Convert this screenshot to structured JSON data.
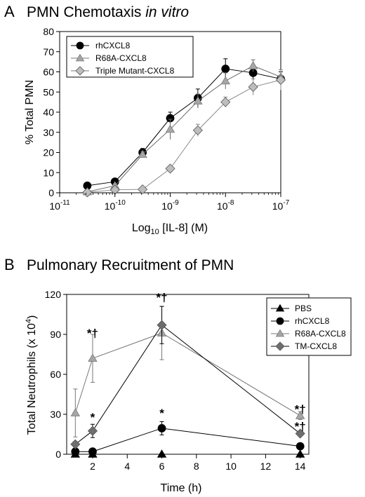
{
  "colors": {
    "rhCXCL8": "#000000",
    "R68A": "#a6a6a6",
    "TM_A": "#bdbdbd",
    "TM_B": "#6e6e6e",
    "PBS": "#000000",
    "line": "#404040"
  },
  "chart_data": [
    {
      "type": "line",
      "panel_label": "A",
      "title": "PMN Chemotaxis",
      "title_italic": "in vitro",
      "xlabel_pre": "Log",
      "xlabel_sub": "10",
      "xlabel_post": " [IL-8] (M)",
      "ylabel": "% Total PMN",
      "x_scale": "log",
      "xlim_exp": [
        -11,
        -7
      ],
      "ylim": [
        0,
        80
      ],
      "y_ticks": [
        0,
        10,
        20,
        30,
        40,
        50,
        60,
        70,
        80
      ],
      "x_tick_labels": [
        {
          "exp": -11,
          "base": "10",
          "sup": "-11"
        },
        {
          "exp": -10,
          "base": "10",
          "sup": "-10"
        },
        {
          "exp": -9,
          "base": "10",
          "sup": "-9"
        },
        {
          "exp": -8,
          "base": "10",
          "sup": "-8"
        },
        {
          "exp": -7,
          "base": "10",
          "sup": "-7"
        }
      ],
      "legend_position": "top-left",
      "series": [
        {
          "name": "rhCXCL8",
          "marker": "circle",
          "color_key": "rhCXCL8",
          "log10_x": [
            -10.5,
            -10.0,
            -9.5,
            -9.0,
            -8.5,
            -8.0,
            -7.5,
            -7.0
          ],
          "y": [
            3.5,
            5.5,
            20.0,
            37.0,
            47.0,
            61.5,
            59.5,
            56.5
          ],
          "err": [
            1.0,
            1.0,
            2.0,
            3.0,
            4.5,
            5.0,
            3.5,
            3.5
          ]
        },
        {
          "name": "R68A-CXCL8",
          "marker": "triangle",
          "color_key": "R68A",
          "log10_x": [
            -10.5,
            -10.0,
            -9.5,
            -9.0,
            -8.5,
            -8.0,
            -7.5,
            -7.0
          ],
          "y": [
            0.5,
            3.5,
            19.0,
            31.5,
            45.5,
            55.5,
            63.0,
            57.5
          ],
          "err": [
            1.0,
            1.0,
            1.5,
            5.0,
            3.5,
            4.0,
            3.0,
            3.5
          ]
        },
        {
          "name": "Triple Mutant-CXCL8",
          "marker": "diamond",
          "color_key": "TM_A",
          "log10_x": [
            -10.5,
            -10.0,
            -9.5,
            -9.0,
            -8.5,
            -8.0,
            -7.5,
            -7.0
          ],
          "y": [
            0.2,
            1.5,
            1.7,
            12.0,
            31.0,
            45.0,
            52.5,
            56.0
          ],
          "err": [
            0.5,
            0.5,
            0.5,
            1.0,
            3.0,
            2.5,
            4.0,
            5.0
          ]
        }
      ]
    },
    {
      "type": "line",
      "panel_label": "B",
      "title": "Pulmonary Recruitment of PMN",
      "xlabel": "Time (h)",
      "ylabel": "Total Neutrophils (x 10",
      "ylabel_sup": "4",
      "ylabel_close": ")",
      "xlim": [
        0.5,
        14.5
      ],
      "x_ticks": [
        2,
        4,
        6,
        8,
        10,
        12,
        14
      ],
      "ylim": [
        0,
        120
      ],
      "y_ticks": [
        0,
        30,
        60,
        90,
        120
      ],
      "legend_position": "top-right",
      "series": [
        {
          "name": "PBS",
          "marker": "triangle",
          "color_key": "PBS",
          "x": [
            1,
            2,
            6,
            14
          ],
          "y": [
            0,
            0,
            0,
            0
          ],
          "err": [
            0,
            0,
            0,
            0
          ]
        },
        {
          "name": "rhCXCL8",
          "marker": "circle",
          "color_key": "rhCXCL8",
          "x": [
            1,
            2,
            6,
            14
          ],
          "y": [
            2.0,
            2.0,
            19.5,
            6.0
          ],
          "err": [
            1.0,
            1.0,
            5.0,
            1.0
          ]
        },
        {
          "name": "R68A-CXCL8",
          "marker": "triangle",
          "color_key": "R68A",
          "x": [
            1,
            2,
            6,
            14
          ],
          "y": [
            31.0,
            72.0,
            91.0,
            29.0
          ],
          "err": [
            18.0,
            18.0,
            20.0,
            3.0
          ]
        },
        {
          "name": "TM-CXCL8",
          "marker": "diamond",
          "color_key": "TM_B",
          "x": [
            1,
            2,
            6,
            14
          ],
          "y": [
            7.5,
            17.5,
            97.0,
            15.5
          ],
          "err": [
            2.0,
            5.0,
            14.0,
            2.0
          ]
        }
      ],
      "annotations": [
        {
          "text": "*†",
          "x": 2,
          "y": 91
        },
        {
          "text": "*",
          "x": 2,
          "y": 28
        },
        {
          "text": "*†",
          "x": 6,
          "y": 118
        },
        {
          "text": "*",
          "x": 6,
          "y": 31
        },
        {
          "text": "*†",
          "x": 14,
          "y": 34
        },
        {
          "text": "*†",
          "x": 14,
          "y": 21
        }
      ]
    }
  ]
}
